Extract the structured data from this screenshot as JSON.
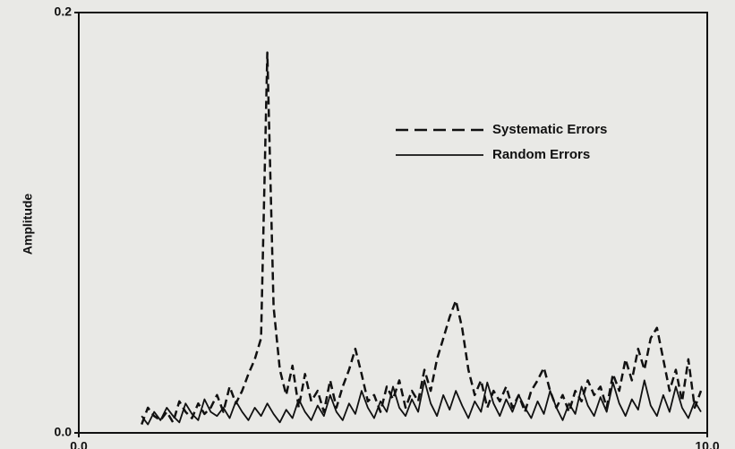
{
  "chart_data": {
    "type": "line",
    "y_label": "Amplitude",
    "x": [
      1.0,
      1.1,
      1.2,
      1.3,
      1.4,
      1.5,
      1.6,
      1.7,
      1.8,
      1.9,
      2.0,
      2.1,
      2.2,
      2.3,
      2.4,
      2.5,
      2.6,
      2.7,
      2.8,
      2.9,
      3.0,
      3.1,
      3.2,
      3.3,
      3.4,
      3.5,
      3.6,
      3.7,
      3.8,
      3.9,
      4.0,
      4.1,
      4.2,
      4.3,
      4.4,
      4.5,
      4.6,
      4.7,
      4.8,
      4.9,
      5.0,
      5.1,
      5.2,
      5.3,
      5.4,
      5.5,
      5.6,
      5.7,
      5.8,
      5.9,
      6.0,
      6.1,
      6.2,
      6.3,
      6.4,
      6.5,
      6.6,
      6.7,
      6.8,
      6.9,
      7.0,
      7.1,
      7.2,
      7.3,
      7.4,
      7.5,
      7.6,
      7.7,
      7.8,
      7.9,
      8.0,
      8.1,
      8.2,
      8.3,
      8.4,
      8.5,
      8.6,
      8.7,
      8.8,
      8.9,
      9.0,
      9.1,
      9.2,
      9.3,
      9.4,
      9.5,
      9.6,
      9.7,
      9.8,
      9.9
    ],
    "series": [
      {
        "name": "Systematic Errors",
        "color": "#111111",
        "dash": true,
        "values": [
          0.004,
          0.012,
          0.008,
          0.006,
          0.01,
          0.005,
          0.015,
          0.01,
          0.007,
          0.014,
          0.009,
          0.012,
          0.018,
          0.01,
          0.022,
          0.014,
          0.02,
          0.028,
          0.035,
          0.045,
          0.181,
          0.06,
          0.03,
          0.018,
          0.032,
          0.012,
          0.028,
          0.015,
          0.02,
          0.01,
          0.025,
          0.012,
          0.022,
          0.03,
          0.04,
          0.028,
          0.015,
          0.018,
          0.01,
          0.022,
          0.016,
          0.025,
          0.012,
          0.02,
          0.015,
          0.03,
          0.02,
          0.035,
          0.045,
          0.055,
          0.063,
          0.05,
          0.03,
          0.018,
          0.025,
          0.012,
          0.02,
          0.015,
          0.022,
          0.012,
          0.018,
          0.01,
          0.02,
          0.025,
          0.031,
          0.02,
          0.012,
          0.018,
          0.01,
          0.02,
          0.015,
          0.025,
          0.018,
          0.022,
          0.012,
          0.028,
          0.02,
          0.035,
          0.025,
          0.04,
          0.03,
          0.045,
          0.05,
          0.035,
          0.02,
          0.03,
          0.015,
          0.035,
          0.012,
          0.02
        ]
      },
      {
        "name": "Random Errors",
        "color": "#111111",
        "dash": false,
        "values": [
          0.008,
          0.004,
          0.01,
          0.006,
          0.012,
          0.008,
          0.005,
          0.014,
          0.009,
          0.006,
          0.016,
          0.01,
          0.008,
          0.012,
          0.007,
          0.015,
          0.01,
          0.006,
          0.012,
          0.008,
          0.014,
          0.009,
          0.005,
          0.011,
          0.007,
          0.016,
          0.01,
          0.006,
          0.013,
          0.008,
          0.018,
          0.01,
          0.006,
          0.014,
          0.009,
          0.02,
          0.012,
          0.007,
          0.015,
          0.01,
          0.022,
          0.012,
          0.008,
          0.016,
          0.01,
          0.025,
          0.014,
          0.008,
          0.018,
          0.011,
          0.02,
          0.013,
          0.007,
          0.015,
          0.01,
          0.024,
          0.014,
          0.008,
          0.016,
          0.01,
          0.018,
          0.012,
          0.007,
          0.015,
          0.009,
          0.02,
          0.012,
          0.006,
          0.014,
          0.009,
          0.022,
          0.013,
          0.008,
          0.017,
          0.01,
          0.024,
          0.014,
          0.008,
          0.016,
          0.011,
          0.025,
          0.013,
          0.008,
          0.018,
          0.01,
          0.022,
          0.012,
          0.007,
          0.015,
          0.01
        ]
      }
    ],
    "xlim": [
      0,
      10
    ],
    "ylim": [
      0,
      0.2
    ],
    "xticks": [
      {
        "value": 0,
        "label": "0.0"
      },
      {
        "value": 10,
        "label": "10.0"
      }
    ],
    "yticks": [
      {
        "value": 0,
        "label": "0.0"
      },
      {
        "value": 0.2,
        "label": "0.2"
      }
    ],
    "grid": false,
    "legend": "upper right"
  }
}
